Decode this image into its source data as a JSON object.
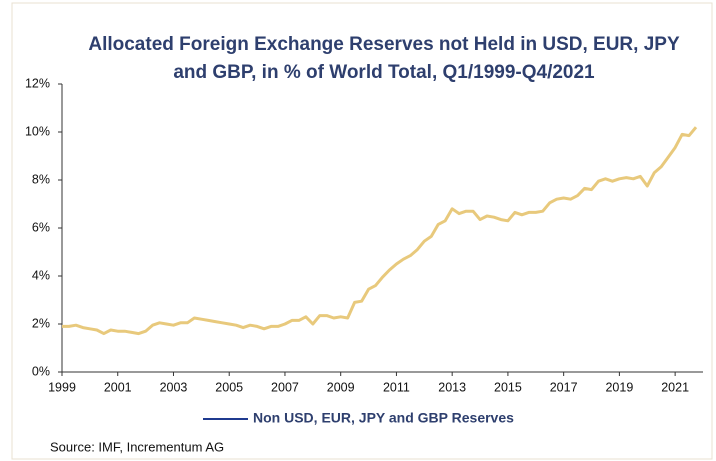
{
  "chart_data": {
    "type": "line",
    "title": [
      "Allocated Foreign Exchange Reserves not Held in USD, EUR, JPY",
      "and GBP, in % of World Total, Q1/1999-Q4/2021"
    ],
    "source": "Source: IMF, Incrementum AG",
    "x": [
      1999,
      1999.25,
      1999.5,
      1999.75,
      2000,
      2000.25,
      2000.5,
      2000.75,
      2001,
      2001.25,
      2001.5,
      2001.75,
      2002,
      2002.25,
      2002.5,
      2002.75,
      2003,
      2003.25,
      2003.5,
      2003.75,
      2004,
      2004.25,
      2004.5,
      2004.75,
      2005,
      2005.25,
      2005.5,
      2005.75,
      2006,
      2006.25,
      2006.5,
      2006.75,
      2007,
      2007.25,
      2007.5,
      2007.75,
      2008,
      2008.25,
      2008.5,
      2008.75,
      2009,
      2009.25,
      2009.5,
      2009.75,
      2010,
      2010.25,
      2010.5,
      2010.75,
      2011,
      2011.25,
      2011.5,
      2011.75,
      2012,
      2012.25,
      2012.5,
      2012.75,
      2013,
      2013.25,
      2013.5,
      2013.75,
      2014,
      2014.25,
      2014.5,
      2014.75,
      2015,
      2015.25,
      2015.5,
      2015.75,
      2016,
      2016.25,
      2016.5,
      2016.75,
      2017,
      2017.25,
      2017.5,
      2017.75,
      2018,
      2018.25,
      2018.5,
      2018.75,
      2019,
      2019.25,
      2019.5,
      2019.75,
      2020,
      2020.25,
      2020.5,
      2020.75,
      2021,
      2021.25,
      2021.5,
      2021.75
    ],
    "series": [
      {
        "name": "Non USD, EUR, JPY and GBP Reserves",
        "color": "#e8c97c",
        "legend_color": "#1f3a8f",
        "values": [
          1.9,
          1.9,
          1.95,
          1.85,
          1.8,
          1.75,
          1.6,
          1.75,
          1.7,
          1.7,
          1.65,
          1.6,
          1.7,
          1.95,
          2.05,
          2.0,
          1.95,
          2.05,
          2.05,
          2.25,
          2.2,
          2.15,
          2.1,
          2.05,
          2.0,
          1.95,
          1.85,
          1.95,
          1.9,
          1.8,
          1.9,
          1.9,
          2.0,
          2.15,
          2.15,
          2.3,
          2.0,
          2.35,
          2.35,
          2.25,
          2.3,
          2.25,
          2.9,
          2.95,
          3.45,
          3.6,
          3.95,
          4.25,
          4.5,
          4.7,
          4.85,
          5.1,
          5.45,
          5.65,
          6.15,
          6.3,
          6.8,
          6.6,
          6.7,
          6.7,
          6.35,
          6.5,
          6.45,
          6.35,
          6.3,
          6.65,
          6.55,
          6.65,
          6.65,
          6.7,
          7.05,
          7.2,
          7.25,
          7.2,
          7.35,
          7.65,
          7.6,
          7.95,
          8.05,
          7.95,
          8.05,
          8.1,
          8.05,
          8.15,
          7.75,
          8.3,
          8.55,
          8.95,
          9.35,
          9.9,
          9.85,
          10.2
        ]
      }
    ],
    "xlim": [
      1999,
      2022
    ],
    "xticks": [
      1999,
      2001,
      2003,
      2005,
      2007,
      2009,
      2011,
      2013,
      2015,
      2017,
      2019,
      2021
    ],
    "ylim": [
      0,
      12
    ],
    "yticks": [
      {
        "value": 0,
        "label": "0%"
      },
      {
        "value": 2,
        "label": "2%"
      },
      {
        "value": 4,
        "label": "4%"
      },
      {
        "value": 6,
        "label": "6%"
      },
      {
        "value": 8,
        "label": "8%"
      },
      {
        "value": 10,
        "label": "10%"
      },
      {
        "value": 12,
        "label": "12%"
      }
    ],
    "grid": false,
    "legend": "bottom"
  }
}
